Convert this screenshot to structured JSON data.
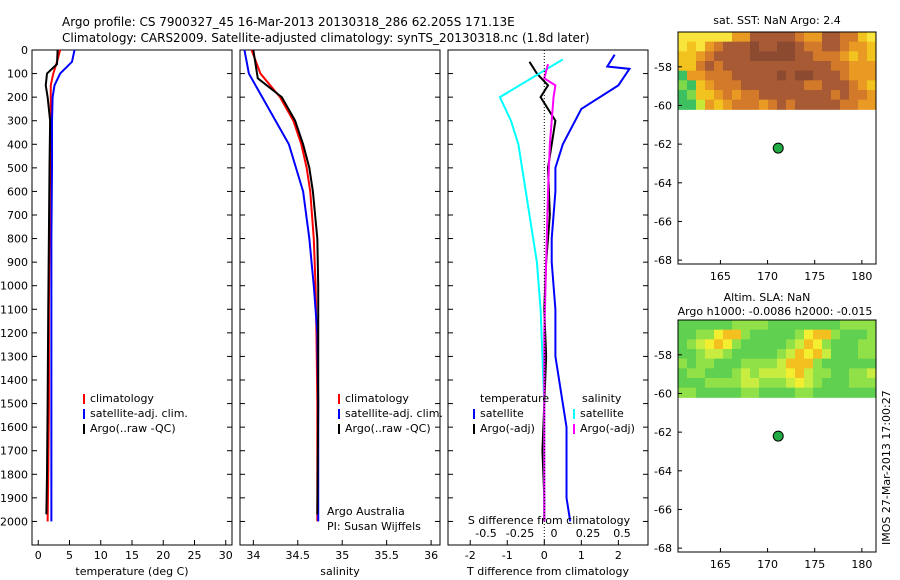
{
  "header": {
    "title_line1": "Argo profile: CS 7900327_45 16-Mar-2013 20130318_286 62.205S 171.13E",
    "title_line2": "Climatology: CARS2009. Satellite-adjusted climatology: synTS_20130318.nc (1.8d later)"
  },
  "colors": {
    "climatology": "#ff0000",
    "satellite": "#0000ff",
    "argo": "#000000",
    "temp_satellite": "#0000ff",
    "temp_argo": "#000000",
    "sal_satellite": "#00ffff",
    "sal_argo": "#ff00ff",
    "float_marker": "#22aa44"
  },
  "chart_data": [
    {
      "type": "line",
      "xlabel": "temperature (deg C)",
      "ylabel": "",
      "xlim": [
        -1,
        31
      ],
      "ylim": [
        2100,
        0
      ],
      "xticks": [
        0,
        5,
        10,
        15,
        20,
        25,
        30
      ],
      "yticks": [
        0,
        100,
        200,
        300,
        400,
        500,
        600,
        700,
        800,
        900,
        1000,
        1100,
        1200,
        1300,
        1400,
        1500,
        1600,
        1700,
        1800,
        1900,
        2000
      ],
      "legend": [
        "climatology",
        "satellite-adj. clim.",
        "Argo(..raw -QC)"
      ],
      "series": [
        {
          "name": "climatology",
          "color": "climatology",
          "x": [
            3.5,
            3.0,
            2.4,
            2.0,
            2.0,
            2.0,
            1.9,
            1.8,
            1.7,
            1.7,
            1.6,
            1.5
          ],
          "y": [
            0,
            50,
            100,
            150,
            200,
            300,
            500,
            800,
            1100,
            1500,
            1800,
            2000
          ]
        },
        {
          "name": "satellite-adj. clim.",
          "color": "satellite",
          "x": [
            5.8,
            5.4,
            3.5,
            2.6,
            2.3,
            2.2,
            2.2,
            2.1,
            2.1,
            2.1,
            2.1,
            2.1
          ],
          "y": [
            0,
            50,
            100,
            150,
            200,
            300,
            500,
            800,
            1100,
            1500,
            1800,
            2000
          ]
        },
        {
          "name": "Argo(..raw -QC)",
          "color": "argo",
          "x": [
            3.1,
            3.0,
            1.4,
            1.2,
            1.5,
            1.9,
            1.8,
            1.7,
            1.6,
            1.5,
            1.4,
            1.3
          ],
          "y": [
            0,
            60,
            100,
            150,
            200,
            300,
            500,
            800,
            1100,
            1500,
            1800,
            1970
          ]
        }
      ]
    },
    {
      "type": "line",
      "xlabel": "salinity",
      "xlim": [
        33.85,
        36.1
      ],
      "ylim": [
        2100,
        0
      ],
      "xticks": [
        34,
        34.5,
        35,
        35.5,
        36
      ],
      "xticklabels": [
        "34",
        "34.5",
        "35",
        "35.5",
        "36"
      ],
      "legend": [
        "climatology",
        "satellite-adj. clim.",
        "Argo(..raw -QC)"
      ],
      "annotations": [
        "Argo Australia",
        "PI: Susan Wijffels"
      ],
      "series": [
        {
          "name": "climatology",
          "color": "climatology",
          "x": [
            33.98,
            34.08,
            34.3,
            34.45,
            34.54,
            34.6,
            34.64,
            34.68,
            34.7,
            34.71,
            34.72,
            34.72
          ],
          "y": [
            0,
            100,
            200,
            300,
            400,
            500,
            600,
            800,
            1000,
            1200,
            1500,
            2000
          ]
        },
        {
          "name": "satellite-adj. clim.",
          "color": "satellite",
          "x": [
            33.9,
            33.95,
            34.1,
            34.25,
            34.4,
            34.48,
            34.56,
            34.63,
            34.68,
            34.72,
            34.73,
            34.73
          ],
          "y": [
            0,
            100,
            200,
            300,
            400,
            500,
            600,
            800,
            1000,
            1200,
            1500,
            2000
          ]
        },
        {
          "name": "Argo(..raw -QC)",
          "color": "argo",
          "x": [
            34.0,
            34.05,
            34.32,
            34.47,
            34.56,
            34.63,
            34.67,
            34.72,
            34.73,
            34.73,
            34.73,
            34.72
          ],
          "y": [
            0,
            120,
            200,
            300,
            400,
            500,
            600,
            800,
            1000,
            1200,
            1500,
            1970
          ]
        }
      ]
    },
    {
      "type": "line",
      "xlabel": "T difference from climatology",
      "xlabel_top": "S difference from climatology",
      "xlim": [
        -2.6,
        2.8
      ],
      "ylim": [
        2100,
        0
      ],
      "xticks": [
        -2,
        -1,
        0,
        1,
        2
      ],
      "top_ticklabels": [
        "-0.5",
        "-0.25",
        "0",
        "0.25",
        "0.5"
      ],
      "legend_temperature_title": "temperature",
      "legend_salinity_title": "salinity",
      "legend_temperature": [
        "satellite",
        "Argo(-adj)"
      ],
      "legend_salinity": [
        "satellite",
        "Argo(-adj)"
      ],
      "series": [
        {
          "name": "temperature satellite",
          "color": "temp_satellite",
          "x": [
            1.9,
            1.7,
            2.3,
            2.0,
            1.0,
            0.5,
            0.3,
            0.3,
            0.2,
            0.2,
            0.3,
            0.3,
            0.5,
            0.6,
            0.6,
            0.6,
            0.7
          ],
          "y": [
            20,
            70,
            80,
            150,
            250,
            400,
            500,
            600,
            800,
            900,
            1100,
            1300,
            1500,
            1600,
            1800,
            1900,
            2000
          ]
        },
        {
          "name": "temperature Argo(-adj)",
          "color": "temp_argo",
          "x": [
            -0.4,
            -0.2,
            0.1,
            -0.1,
            0.3,
            0.2,
            0.1,
            0.15,
            0.05,
            0.0,
            0.05,
            0.0,
            -0.05,
            0.0,
            0.0
          ],
          "y": [
            50,
            100,
            150,
            200,
            300,
            400,
            500,
            700,
            900,
            1100,
            1300,
            1500,
            1700,
            1900,
            2000
          ]
        },
        {
          "name": "salinity satellite",
          "color": "sal_satellite",
          "x": [
            0.5,
            -1.2,
            -0.9,
            -0.7,
            -0.6,
            -0.4,
            -0.2,
            -0.1,
            -0.05,
            0.0,
            0.0,
            0.0
          ],
          "y": [
            40,
            200,
            300,
            400,
            500,
            700,
            900,
            1100,
            1300,
            1500,
            1700,
            2000
          ]
        },
        {
          "name": "salinity Argo(-adj)",
          "color": "sal_argo",
          "x": [
            0.1,
            0.0,
            0.3,
            0.25,
            0.2,
            0.15,
            0.1,
            0.05,
            0.0,
            0.0,
            0.0,
            0.0
          ],
          "y": [
            60,
            120,
            150,
            200,
            300,
            400,
            600,
            900,
            1200,
            1500,
            1800,
            2000
          ]
        }
      ]
    },
    {
      "type": "heatmap",
      "title": "sat. SST: NaN Argo: 2.4",
      "xlim": [
        160.5,
        181.5
      ],
      "ylim": [
        -68.2,
        -56.2
      ],
      "xticks": [
        165,
        170,
        175,
        180
      ],
      "yticks": [
        -58,
        -60,
        -62,
        -64,
        -66,
        -68
      ],
      "marker": {
        "lon": 171.13,
        "lat": -62.205
      },
      "palette": [
        "#8c4a30",
        "#a85a34",
        "#d27a2a",
        "#e89a22",
        "#f2c21e",
        "#f8e43a",
        "#c8e838",
        "#7fd84a",
        "#3cc060"
      ],
      "colormap_rows": [
        "5555553311111233112245",
        "5453211101100122112334",
        "4432111100000112223434",
        "4421211111111111122333",
        "8332221111101001112333",
        "7843222111111122111234",
        "8744323221111111121223",
        "8863432223212111112233"
      ]
    },
    {
      "type": "heatmap",
      "title": "Altim. SLA: NaN",
      "subtitle": "Argo h1000: -0.0086 h2000: -0.015",
      "xlim": [
        160.5,
        181.5
      ],
      "ylim": [
        -68.2,
        -56.2
      ],
      "xticks": [
        165,
        170,
        175,
        180
      ],
      "yticks": [
        -58,
        -60,
        -62,
        -64,
        -66,
        -68
      ],
      "marker": {
        "lon": 171.13,
        "lat": -62.205
      },
      "palette": [
        "#00a86b",
        "#30c060",
        "#60d050",
        "#90e048",
        "#c8ec40",
        "#f4ee30",
        "#f4c020",
        "#d0d020",
        "#88d0a0",
        "#58a8c8"
      ],
      "colormap_rows": [
        "2222223333222222223333",
        "2233566322222356632223",
        "2345653222223465322233",
        "2234432222234656422233",
        "3233222333346663222222",
        "2332223434445643322334",
        "2223333443334543222333",
        "3322222332222332222222"
      ]
    }
  ],
  "side_stamp": "IMOS 27-Mar-2013 17:00:27"
}
